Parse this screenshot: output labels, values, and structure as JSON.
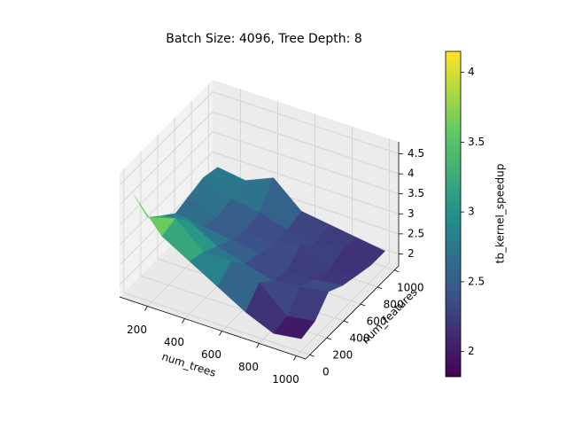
{
  "chart_data": {
    "type": "surface3d",
    "title": "Batch Size: 4096, Tree Depth: 8",
    "x_label": "num_trees",
    "y_label": "num_features",
    "colorbar_label": "tb_kernel_speedup",
    "x": [
      100,
      250,
      400,
      550,
      700,
      850,
      1000
    ],
    "y": [
      10,
      170,
      330,
      500,
      660,
      830,
      1000
    ],
    "z": [
      [
        4.2,
        3.3,
        3.0,
        2.7,
        2.8,
        2.9,
        2.8
      ],
      [
        3.4,
        3.5,
        3.1,
        2.6,
        2.5,
        2.6,
        2.7
      ],
      [
        3.0,
        2.9,
        2.7,
        2.5,
        2.4,
        2.5,
        3.0
      ],
      [
        2.6,
        2.9,
        2.5,
        2.4,
        2.3,
        2.3,
        2.4
      ],
      [
        2.2,
        2.6,
        2.3,
        2.2,
        2.5,
        2.2,
        2.3
      ],
      [
        1.9,
        2.0,
        2.4,
        2.2,
        2.1,
        2.3,
        2.2
      ],
      [
        2.0,
        2.1,
        2.5,
        2.3,
        2.2,
        2.1,
        2.1
      ]
    ],
    "xlim": [
      50,
      1050
    ],
    "xticks": [
      200,
      400,
      600,
      800,
      1000
    ],
    "ylim": [
      -50,
      1050
    ],
    "yticks": [
      0,
      200,
      400,
      600,
      800,
      1000
    ],
    "zlim": [
      1.7,
      4.8
    ],
    "zticks": [
      2.0,
      2.5,
      3.0,
      3.5,
      4.0,
      4.5
    ],
    "clim": [
      1.82,
      4.15
    ],
    "cticks": [
      2.0,
      2.5,
      3.0,
      3.5,
      4.0
    ],
    "colormap": "viridis",
    "grid": true
  }
}
